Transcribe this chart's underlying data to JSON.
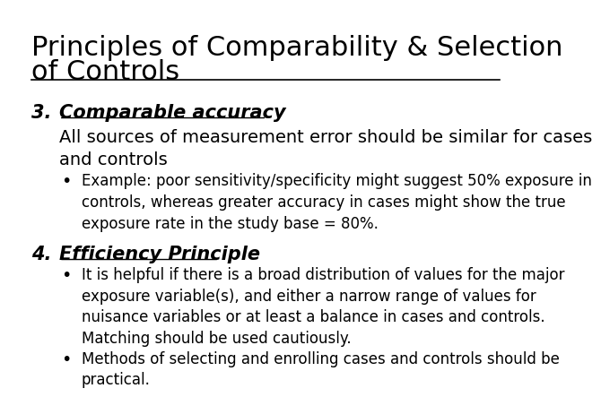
{
  "background_color": "#ffffff",
  "title_line1": "Principles of Comparability & Selection",
  "title_line2": "of Controls",
  "title_fontsize": 22,
  "title_color": "#000000",
  "section3_number": "3.",
  "section3_heading": "Comparable accuracy",
  "section3_heading_fontsize": 15,
  "section3_body": "All sources of measurement error should be similar for cases\nand controls",
  "section3_body_fontsize": 14,
  "section3_bullet1": "Example: poor sensitivity/specificity might suggest 50% exposure in\ncontrols, whereas greater accuracy in cases might show the true\nexposure rate in the study base = 80%.",
  "section3_bullet_fontsize": 12,
  "section4_number": "4.",
  "section4_heading": "Efficiency Principle",
  "section4_heading_fontsize": 15,
  "section4_bullet1": "It is helpful if there is a broad distribution of values for the major\nexposure variable(s), and either a narrow range of values for\nnuisance variables or at least a balance in cases and controls.\nMatching should be used cautiously.",
  "section4_bullet2": "Methods of selecting and enrolling cases and controls should be\npractical.",
  "section4_bullet_fontsize": 12,
  "text_color": "#000000"
}
